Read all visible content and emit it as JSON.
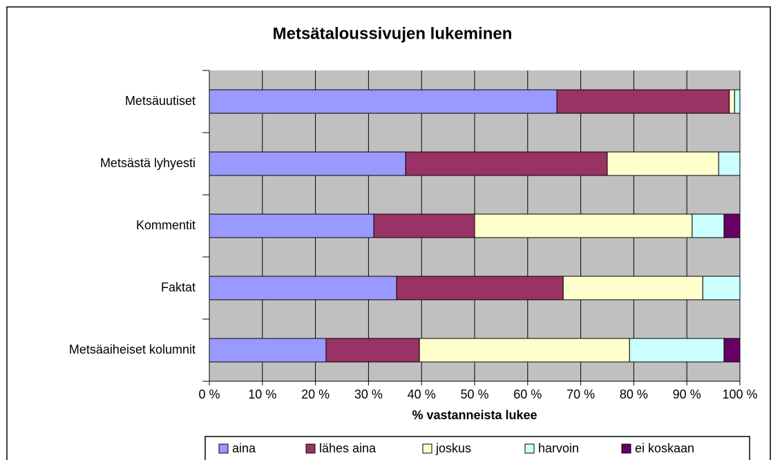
{
  "chart_data": {
    "type": "bar",
    "orientation": "horizontal",
    "stacked": true,
    "title": "Metsätaloussivujen lukeminen",
    "xlabel": "% vastanneista lukee",
    "categories": [
      "Metsäuutiset",
      "Metsästä lyhyesti",
      "Kommentit",
      "Faktat",
      "Metsäaiheiset kolumnit"
    ],
    "series": [
      {
        "name": "aina",
        "color": "#9999ff",
        "values": [
          65.5,
          37,
          31,
          35.3,
          22
        ]
      },
      {
        "name": "lähes aina",
        "color": "#993366",
        "values": [
          32.5,
          38,
          19,
          31.4,
          17.6
        ]
      },
      {
        "name": "joskus",
        "color": "#ffffcc",
        "values": [
          1,
          21,
          41,
          26.3,
          39.6
        ]
      },
      {
        "name": "harvoin",
        "color": "#ccffff",
        "values": [
          1,
          4,
          6,
          7,
          17.8
        ]
      },
      {
        "name": "ei koskaan",
        "color": "#660066",
        "values": [
          0,
          0,
          3,
          0,
          3
        ]
      }
    ],
    "xlim": [
      0,
      100
    ],
    "xticks": [
      {
        "value": 0,
        "label": "0 %"
      },
      {
        "value": 10,
        "label": "10 %"
      },
      {
        "value": 20,
        "label": "20 %"
      },
      {
        "value": 30,
        "label": "30 %"
      },
      {
        "value": 40,
        "label": "40 %"
      },
      {
        "value": 50,
        "label": "50 %"
      },
      {
        "value": 60,
        "label": "60 %"
      },
      {
        "value": 70,
        "label": "70 %"
      },
      {
        "value": 80,
        "label": "80 %"
      },
      {
        "value": 90,
        "label": "90 %"
      },
      {
        "value": 100,
        "label": "100 %"
      }
    ],
    "grid": true,
    "legend": "bottom",
    "plot_background": "#c0c0c0"
  }
}
